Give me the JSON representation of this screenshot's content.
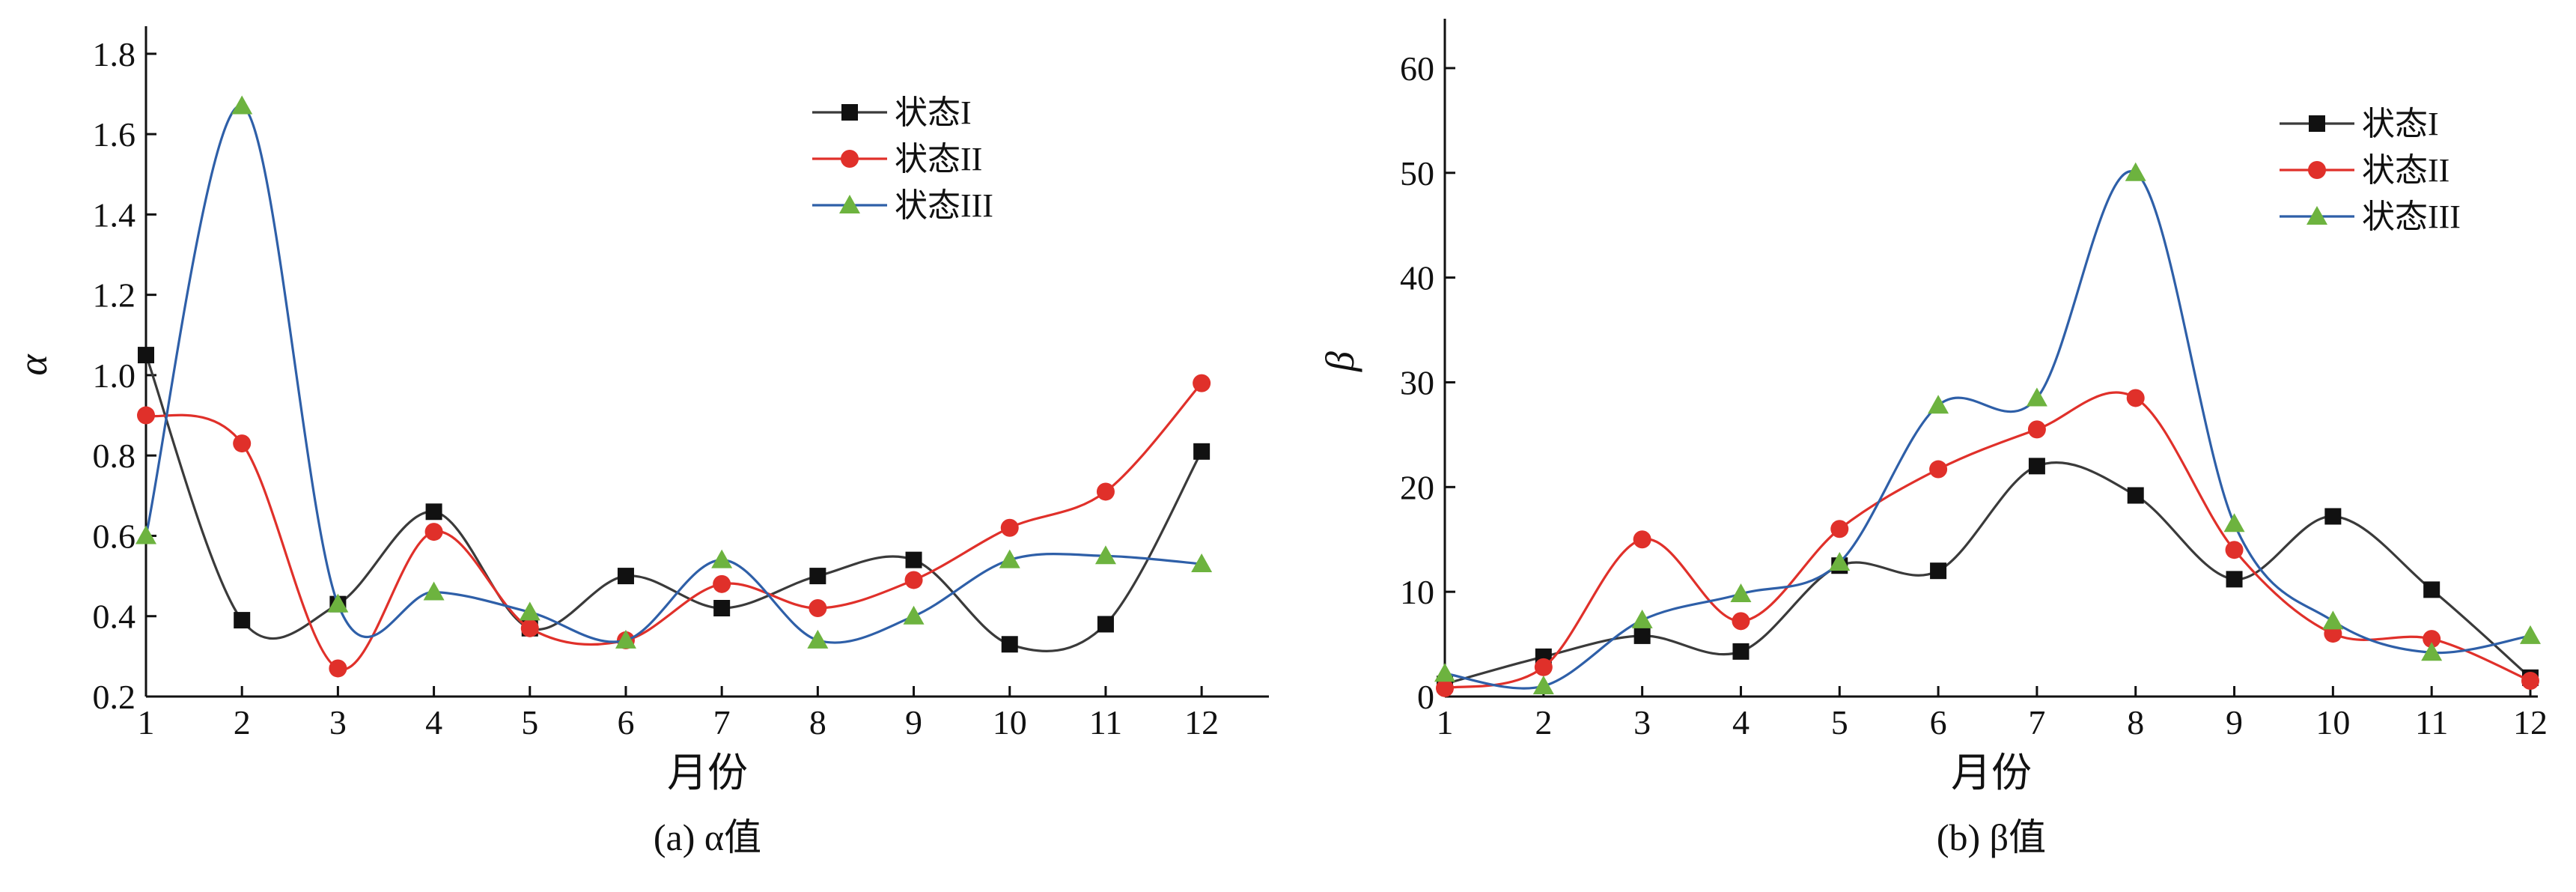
{
  "chart_data": [
    {
      "type": "line",
      "caption": "(a) α值",
      "xlabel": "月份",
      "ylabel": "α",
      "x": [
        1,
        2,
        3,
        4,
        5,
        6,
        7,
        8,
        9,
        10,
        11,
        12
      ],
      "xlim": [
        1,
        12.35
      ],
      "ylim": [
        0.2,
        1.85
      ],
      "xticks": [
        "1",
        "2",
        "3",
        "4",
        "5",
        "6",
        "7",
        "8",
        "9",
        "10",
        "11",
        "12"
      ],
      "yticks": [
        0.2,
        0.4,
        0.6,
        0.8,
        1.0,
        1.2,
        1.4,
        1.6,
        1.8
      ],
      "ytick_labels": [
        "0.2",
        "0.4",
        "0.6",
        "0.8",
        "1.0",
        "1.2",
        "1.4",
        "1.6",
        "1.8"
      ],
      "legend_position": "top-right",
      "series": [
        {
          "name": "状态I",
          "color": "#3a3a3a",
          "marker": "square",
          "values": [
            1.05,
            0.39,
            0.43,
            0.66,
            0.37,
            0.5,
            0.42,
            0.5,
            0.54,
            0.33,
            0.38,
            0.81
          ]
        },
        {
          "name": "状态II",
          "color": "#e0302a",
          "marker": "circle",
          "values": [
            0.9,
            0.83,
            0.27,
            0.61,
            0.37,
            0.34,
            0.48,
            0.42,
            0.49,
            0.62,
            0.71,
            0.98
          ]
        },
        {
          "name": "状态III",
          "color": "#2e5fa8",
          "marker_color": "#6db33f",
          "marker": "triangle",
          "values": [
            0.6,
            1.67,
            0.43,
            0.46,
            0.41,
            0.34,
            0.54,
            0.34,
            0.4,
            0.54,
            0.55,
            0.53
          ]
        }
      ]
    },
    {
      "type": "line",
      "caption": "(b) β值",
      "xlabel": "月份",
      "ylabel": "β",
      "x": [
        1,
        2,
        3,
        4,
        5,
        6,
        7,
        8,
        9,
        10,
        11,
        12
      ],
      "xlim": [
        1,
        12
      ],
      "ylim": [
        0,
        64
      ],
      "xticks": [
        "1",
        "2",
        "3",
        "4",
        "5",
        "6",
        "7",
        "8",
        "9",
        "10",
        "11",
        "12"
      ],
      "yticks": [
        0,
        10,
        20,
        30,
        40,
        50,
        60
      ],
      "ytick_labels": [
        "0",
        "10",
        "20",
        "30",
        "40",
        "50",
        "60"
      ],
      "legend_position": "top-right",
      "series": [
        {
          "name": "状态I",
          "color": "#3a3a3a",
          "marker": "square",
          "values": [
            1.2,
            3.8,
            5.8,
            4.3,
            12.5,
            12.0,
            22.0,
            19.2,
            11.2,
            17.2,
            10.2,
            1.8
          ]
        },
        {
          "name": "状态II",
          "color": "#e0302a",
          "marker": "circle",
          "values": [
            0.8,
            2.8,
            15.0,
            7.2,
            16.0,
            21.7,
            25.5,
            28.5,
            14.0,
            6.0,
            5.5,
            1.5
          ]
        },
        {
          "name": "状态III",
          "color": "#2e5fa8",
          "marker_color": "#6db33f",
          "marker": "triangle",
          "values": [
            2.2,
            1.0,
            7.3,
            9.8,
            12.8,
            27.8,
            28.5,
            50.0,
            16.5,
            7.2,
            4.2,
            5.8
          ]
        }
      ]
    }
  ]
}
